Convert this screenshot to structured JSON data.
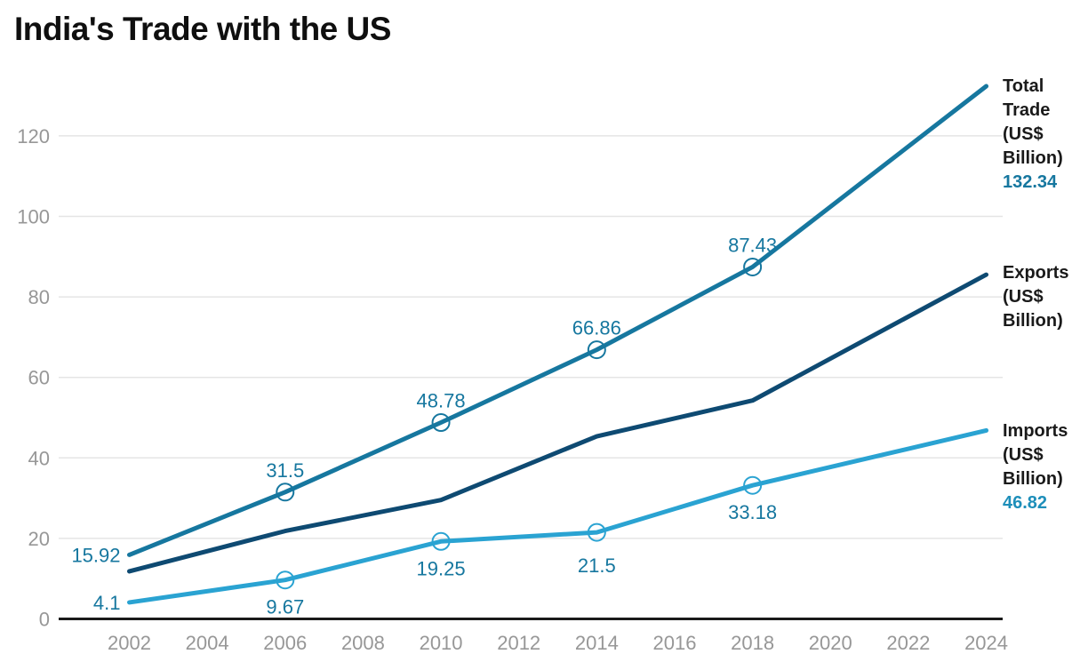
{
  "title": "India's Trade with the US",
  "chart_data": {
    "type": "line",
    "title": "India's Trade with the US",
    "xlabel": "",
    "ylabel": "",
    "x_tick_labels": [
      2002,
      2004,
      2006,
      2008,
      2010,
      2012,
      2014,
      2016,
      2018,
      2020,
      2022,
      2024
    ],
    "y_tick_labels": [
      0,
      20,
      40,
      60,
      80,
      100,
      120
    ],
    "xlim": [
      2002,
      2024
    ],
    "ylim": [
      0,
      135
    ],
    "grid": "horizontal",
    "legend_position": "right",
    "x": [
      2002,
      2006,
      2010,
      2014,
      2018,
      2024
    ],
    "series": [
      {
        "id": "total_trade",
        "name": "Total Trade (US$ Billion)",
        "color": "#16779f",
        "values": [
          15.92,
          31.5,
          48.78,
          66.86,
          87.43,
          132.34
        ],
        "markers_at": [
          2006,
          2010,
          2014,
          2018
        ],
        "point_labels": [
          {
            "year": 2002,
            "text": "15.92",
            "placement": "left"
          },
          {
            "year": 2006,
            "text": "31.5",
            "placement": "above"
          },
          {
            "year": 2010,
            "text": "48.78",
            "placement": "above"
          },
          {
            "year": 2014,
            "text": "66.86",
            "placement": "above"
          },
          {
            "year": 2018,
            "text": "87.43",
            "placement": "above"
          }
        ],
        "end_value_label": "132.34",
        "end_value_color": "#16779f"
      },
      {
        "id": "exports",
        "name": "Exports (US$ Billion)",
        "color": "#0e4a72",
        "values": [
          11.82,
          21.83,
          29.53,
          45.36,
          54.25,
          85.52
        ],
        "markers_at": [],
        "point_labels": [],
        "end_value_label": "",
        "end_value_color": "#0e4a72"
      },
      {
        "id": "imports",
        "name": "Imports (US$ Billion)",
        "color": "#2aa3d2",
        "values": [
          4.1,
          9.67,
          19.25,
          21.5,
          33.18,
          46.82
        ],
        "markers_at": [
          2006,
          2010,
          2014,
          2018
        ],
        "point_labels": [
          {
            "year": 2002,
            "text": "4.1",
            "placement": "left"
          },
          {
            "year": 2006,
            "text": "9.67",
            "placement": "below"
          },
          {
            "year": 2010,
            "text": "19.25",
            "placement": "below"
          },
          {
            "year": 2014,
            "text": "21.5",
            "placement": "below"
          },
          {
            "year": 2018,
            "text": "33.18",
            "placement": "below"
          }
        ],
        "end_value_label": "46.82",
        "end_value_color": "#1e8fba"
      }
    ],
    "data_label_color": "#16779f",
    "axis_label_color": "#979797",
    "gridline_color": "#e5e5e5",
    "axis_line_color": "#1a1a1a"
  }
}
